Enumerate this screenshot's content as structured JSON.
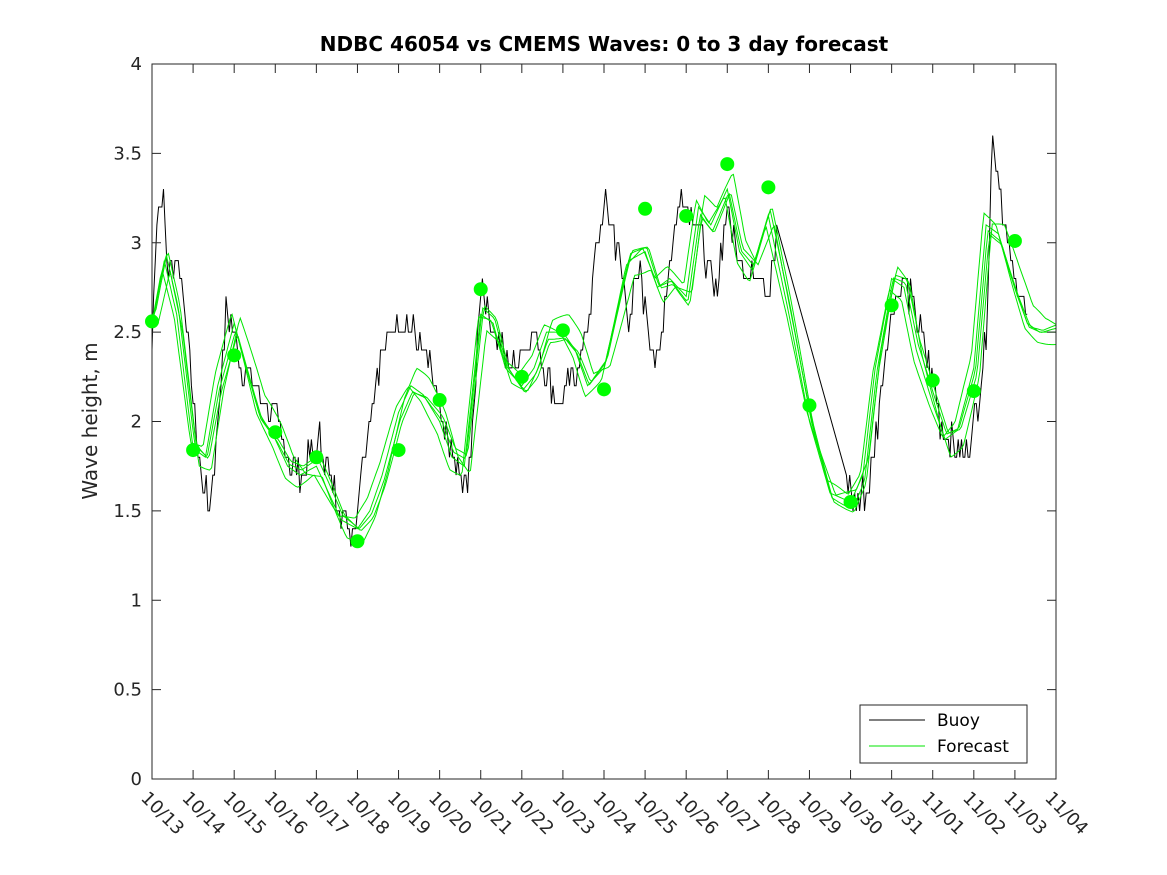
{
  "chart_data": {
    "type": "line",
    "title": "NDBC 46054 vs CMEMS Waves: 0 to 3 day forecast",
    "xlabel": "",
    "ylabel": "Wave height, m",
    "ylim": [
      0,
      4
    ],
    "xlim": [
      0,
      22
    ],
    "y_ticks": [
      0,
      0.5,
      1,
      1.5,
      2,
      2.5,
      3,
      3.5,
      4
    ],
    "y_tick_labels": [
      "0",
      "0.5",
      "1",
      "1.5",
      "2",
      "2.5",
      "3",
      "3.5",
      "4"
    ],
    "x_ticks": [
      0,
      1,
      2,
      3,
      4,
      5,
      6,
      7,
      8,
      9,
      10,
      11,
      12,
      13,
      14,
      15,
      16,
      17,
      18,
      19,
      20,
      21,
      22
    ],
    "x_tick_labels": [
      "10/13",
      "10/14",
      "10/15",
      "10/16",
      "10/17",
      "10/18",
      "10/19",
      "10/20",
      "10/21",
      "10/22",
      "10/23",
      "10/24",
      "10/25",
      "10/26",
      "10/27",
      "10/28",
      "10/29",
      "10/30",
      "10/31",
      "11/01",
      "11/02",
      "11/03",
      "11/04"
    ],
    "grid": false,
    "legend": {
      "position": "bottom-right",
      "entries": [
        {
          "label": "Buoy",
          "color": "#000000"
        },
        {
          "label": "Forecast",
          "color": "#00e600"
        }
      ]
    },
    "colors": {
      "buoy": "#000000",
      "forecast": "#00e600",
      "markers": "#00ff00"
    },
    "series": [
      {
        "name": "Buoy",
        "color": "#000000",
        "noise": 0.09,
        "x": [
          0,
          0.1,
          0.25,
          0.4,
          0.6,
          0.8,
          1.0,
          1.2,
          1.4,
          1.6,
          1.8,
          2.0,
          2.2,
          2.5,
          2.8,
          3.0,
          3.3,
          3.6,
          3.9,
          4.1,
          4.3,
          4.6,
          4.9,
          5.0,
          5.2,
          5.5,
          5.8,
          6.0,
          6.3,
          6.6,
          6.9,
          7.0,
          7.3,
          7.6,
          7.8,
          8.0,
          8.2,
          8.5,
          8.8,
          9.0,
          9.3,
          9.6,
          9.9,
          10.2,
          10.5,
          10.8,
          11.0,
          11.3,
          11.6,
          11.9,
          12.1,
          12.3,
          12.6,
          12.9,
          13.1,
          13.4,
          13.7,
          14.0,
          14.2,
          14.5,
          14.8,
          15.0,
          15.2,
          16.9,
          17.0,
          17.2,
          17.5,
          17.8,
          18.0,
          18.3,
          18.6,
          18.9,
          19.2,
          19.5,
          19.8,
          20.1,
          20.3,
          20.45,
          20.6,
          20.8,
          21.0,
          21.3
        ],
        "y": [
          2.4,
          3.1,
          3.3,
          2.8,
          2.9,
          2.7,
          2.1,
          1.7,
          1.5,
          2.0,
          2.6,
          2.5,
          2.3,
          2.2,
          2.1,
          2.0,
          1.8,
          1.7,
          1.8,
          1.9,
          1.7,
          1.5,
          1.4,
          1.55,
          1.9,
          2.3,
          2.5,
          2.6,
          2.5,
          2.4,
          2.2,
          2.0,
          1.8,
          1.6,
          1.9,
          2.8,
          2.6,
          2.4,
          2.3,
          2.4,
          2.5,
          2.3,
          2.1,
          2.2,
          2.4,
          2.9,
          3.2,
          3.0,
          2.6,
          2.8,
          2.5,
          2.3,
          2.9,
          3.3,
          3.2,
          3.0,
          2.7,
          3.2,
          3.0,
          2.8,
          2.9,
          2.7,
          3.0,
          1.7,
          1.6,
          1.55,
          1.7,
          2.3,
          2.6,
          2.8,
          2.6,
          2.3,
          2.0,
          1.85,
          1.8,
          2.1,
          2.5,
          3.6,
          3.4,
          3.0,
          2.8,
          2.6
        ]
      },
      {
        "name": "Forecast",
        "color": "#00e600",
        "x": [
          0,
          0.3,
          0.6,
          1.0,
          1.3,
          1.6,
          2.0,
          2.3,
          2.6,
          3.0,
          3.3,
          3.6,
          4.0,
          4.3,
          4.6,
          5.0,
          5.3,
          5.6,
          6.0,
          6.3,
          6.6,
          7.0,
          7.3,
          7.6,
          8.0,
          8.3,
          8.6,
          9.0,
          9.3,
          9.6,
          10.0,
          10.3,
          10.6,
          11.0,
          11.3,
          11.6,
          12.0,
          12.3,
          12.6,
          13.0,
          13.3,
          13.6,
          14.0,
          14.3,
          14.6,
          15.0,
          15.5,
          16.0,
          16.5,
          17.0,
          17.3,
          17.6,
          18.0,
          18.3,
          18.6,
          19.0,
          19.3,
          19.6,
          20.0,
          20.3,
          20.6,
          21.0,
          21.3,
          21.6,
          22.0
        ],
        "y": [
          2.55,
          2.9,
          2.6,
          1.85,
          1.8,
          2.2,
          2.55,
          2.3,
          2.05,
          1.9,
          1.75,
          1.7,
          1.75,
          1.6,
          1.45,
          1.4,
          1.5,
          1.7,
          2.05,
          2.2,
          2.15,
          2.0,
          1.8,
          1.75,
          2.6,
          2.55,
          2.3,
          2.2,
          2.3,
          2.5,
          2.5,
          2.4,
          2.2,
          2.3,
          2.6,
          2.9,
          2.95,
          2.75,
          2.8,
          2.7,
          3.2,
          3.1,
          3.3,
          2.95,
          2.85,
          3.15,
          2.6,
          2.0,
          1.6,
          1.55,
          1.7,
          2.3,
          2.8,
          2.75,
          2.4,
          2.1,
          1.9,
          1.95,
          2.3,
          3.1,
          3.05,
          2.75,
          2.55,
          2.5,
          2.5
        ]
      }
    ],
    "forecast_points": {
      "x": [
        0,
        1,
        2,
        3,
        4,
        5,
        6,
        7,
        8,
        9,
        10,
        11,
        12,
        13,
        14,
        15,
        16,
        17,
        18,
        19,
        20,
        21
      ],
      "y": [
        2.56,
        1.84,
        2.37,
        1.94,
        1.8,
        1.33,
        1.84,
        2.12,
        2.74,
        2.25,
        2.51,
        2.18,
        3.19,
        3.15,
        3.44,
        3.31,
        2.09,
        1.55,
        2.65,
        2.23,
        2.17,
        3.01
      ]
    }
  }
}
